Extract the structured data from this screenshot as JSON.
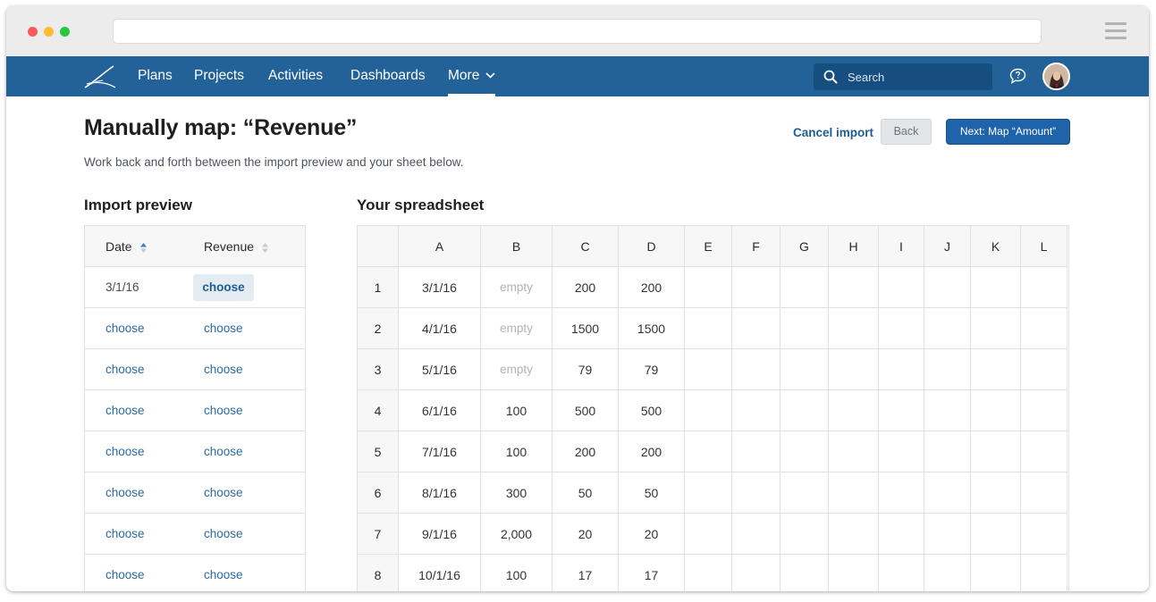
{
  "nav": {
    "items": [
      {
        "label": "Plans"
      },
      {
        "label": "Projects"
      },
      {
        "label": "Activities"
      },
      {
        "label": "Dashboards"
      },
      {
        "label": "More"
      }
    ],
    "active": "More",
    "search_placeholder": "Search",
    "accent": "#236299"
  },
  "header": {
    "title": "Manually map: “Revenue”",
    "subtitle": "Work back and forth between the import preview and your sheet below.",
    "cancel_label": "Cancel import",
    "back_label": "Back",
    "next_label": "Next: Map “Amount”"
  },
  "preview": {
    "title": "Import preview",
    "columns": [
      "Date",
      "Revenue"
    ],
    "rows": [
      [
        "3/1/16",
        "choose"
      ],
      [
        "choose",
        "choose"
      ],
      [
        "choose",
        "choose"
      ],
      [
        "choose",
        "choose"
      ],
      [
        "choose",
        "choose"
      ],
      [
        "choose",
        "choose"
      ],
      [
        "choose",
        "choose"
      ],
      [
        "choose",
        "choose"
      ]
    ]
  },
  "spreadsheet": {
    "title": "Your spreadsheet",
    "columns": [
      "A",
      "B",
      "C",
      "D",
      "E",
      "F",
      "G",
      "H",
      "I",
      "J",
      "K",
      "L"
    ],
    "rows": [
      {
        "num": "1",
        "cells": [
          "3/1/16",
          "empty",
          "200",
          "200"
        ]
      },
      {
        "num": "2",
        "cells": [
          "4/1/16",
          "empty",
          "1500",
          "1500"
        ]
      },
      {
        "num": "3",
        "cells": [
          "5/1/16",
          "empty",
          "79",
          "79"
        ]
      },
      {
        "num": "4",
        "cells": [
          "6/1/16",
          "100",
          "500",
          "500"
        ]
      },
      {
        "num": "5",
        "cells": [
          "7/1/16",
          "100",
          "200",
          "200"
        ]
      },
      {
        "num": "6",
        "cells": [
          "8/1/16",
          "300",
          "50",
          "50"
        ]
      },
      {
        "num": "7",
        "cells": [
          "9/1/16",
          "2,000",
          "20",
          "20"
        ]
      },
      {
        "num": "8",
        "cells": [
          "10/1/16",
          "100",
          "17",
          "17"
        ]
      }
    ]
  }
}
